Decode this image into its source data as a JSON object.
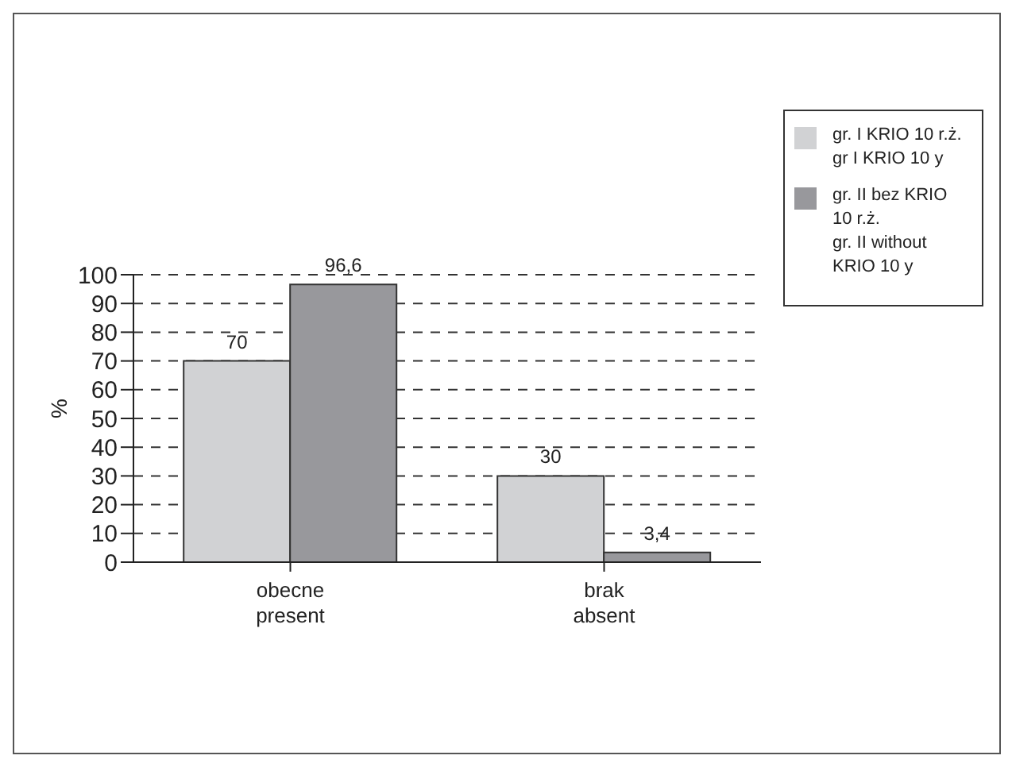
{
  "chart_data": {
    "type": "bar",
    "ylabel": "%",
    "categories": [
      "obecne\npresent",
      "brak\nabsent"
    ],
    "series": [
      {
        "name": "gr. I KRIO 10 r.ż.\ngr I KRIO 10 y",
        "color": "#d1d2d4",
        "values": [
          70,
          30
        ],
        "value_labels": [
          "70",
          "30"
        ]
      },
      {
        "name": "gr. II bez KRIO\n10 r.ż.\ngr. II without\nKRIO 10 y",
        "color": "#98989c",
        "values": [
          96.6,
          3.4
        ],
        "value_labels": [
          "96,6",
          "3,4"
        ]
      }
    ],
    "ylim": [
      0,
      100
    ],
    "yticks": [
      0,
      10,
      20,
      30,
      40,
      50,
      60,
      70,
      80,
      90,
      100
    ],
    "grid": "y",
    "legend": "top right"
  }
}
